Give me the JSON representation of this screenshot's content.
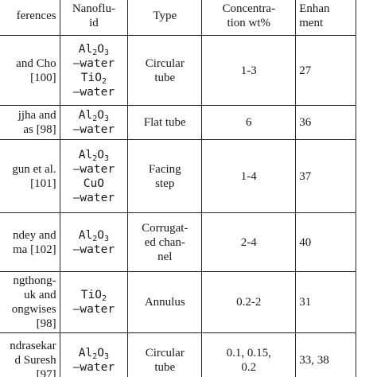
{
  "headers": {
    "references": [
      "ferences"
    ],
    "nanofluid": [
      "Nanoflu-",
      "id"
    ],
    "type": [
      "Type"
    ],
    "concentration": [
      "Concentra-",
      "tion wt%"
    ],
    "enhancement": [
      "Enhan",
      "ment"
    ]
  },
  "rows": [
    {
      "ref": [
        "and Cho",
        "[100]"
      ],
      "fluids": [
        [
          "Al",
          "2",
          "O",
          "3"
        ],
        [
          "–water"
        ],
        [
          "TiO",
          "2",
          ""
        ],
        [
          "–water"
        ]
      ],
      "type": [
        "Circular",
        "tube"
      ],
      "conc": [
        "1-3"
      ],
      "enh": [
        "27"
      ]
    },
    {
      "ref": [
        "jjha and",
        "as [98]"
      ],
      "fluids": [
        [
          "Al",
          "2",
          "O",
          "3"
        ],
        [
          "–water"
        ]
      ],
      "type": [
        "Flat tube"
      ],
      "conc": [
        "6"
      ],
      "enh": [
        "36"
      ]
    },
    {
      "ref": [
        "gun et al.",
        "[101]"
      ],
      "fluids": [
        [
          "Al",
          "2",
          "O",
          "3"
        ],
        [
          "–water"
        ],
        [
          "CuO"
        ],
        [
          "–water"
        ]
      ],
      "type": [
        "Facing",
        "step"
      ],
      "conc": [
        "1-4"
      ],
      "enh": [
        "37"
      ]
    },
    {
      "ref": [
        "ndey and",
        "ma [102]"
      ],
      "fluids": [
        [
          "Al",
          "2",
          "O",
          "3"
        ],
        [
          "–water"
        ]
      ],
      "type": [
        "Corrugat-",
        "ed chan-",
        "nel"
      ],
      "conc": [
        "2-4"
      ],
      "enh": [
        "40"
      ]
    },
    {
      "ref": [
        "ngthong-",
        "uk and",
        "ongwises",
        "[98]"
      ],
      "fluids": [
        [
          "TiO",
          "2",
          ""
        ],
        [
          "–water"
        ]
      ],
      "type": [
        "Annulus"
      ],
      "conc": [
        "0.2-2"
      ],
      "enh": [
        "31"
      ]
    },
    {
      "ref": [
        "ndrasekar",
        "d Suresh",
        "[97]"
      ],
      "fluids": [
        [
          "Al",
          "2",
          "O",
          "3"
        ],
        [
          "–water"
        ]
      ],
      "type": [
        "Circular",
        "tube"
      ],
      "conc": [
        "0.1, 0.15,",
        "0.2"
      ],
      "enh": [
        "33, 38"
      ]
    }
  ]
}
